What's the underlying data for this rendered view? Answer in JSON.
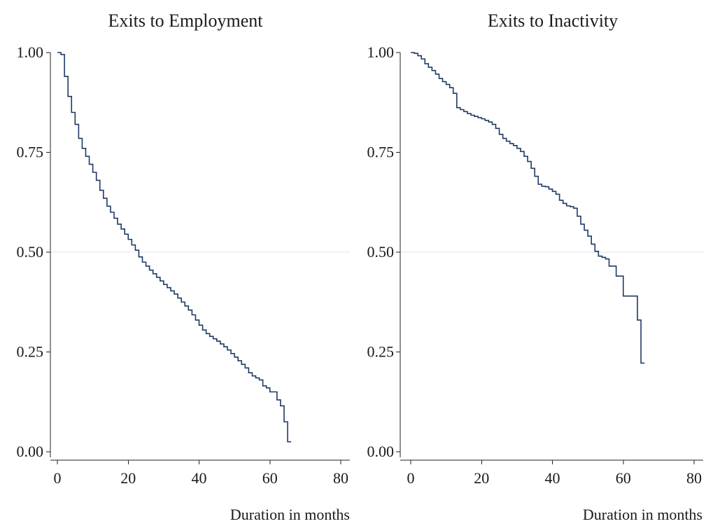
{
  "colors": {
    "series": "#1f3a66",
    "reference_line": "#dde3f2",
    "axis": "#222222"
  },
  "chart_data": [
    {
      "type": "line",
      "step": true,
      "title": "Exits to Employment",
      "xlabel": "Duration in months",
      "ylabel": "",
      "xlim": [
        0,
        80
      ],
      "ylim": [
        0,
        1
      ],
      "xticks": [
        0,
        20,
        40,
        60,
        80
      ],
      "xtick_labels": [
        "0",
        "20",
        "40",
        "60",
        "80"
      ],
      "yticks": [
        0,
        0.25,
        0.5,
        0.75,
        1
      ],
      "ytick_labels": [
        "0.00",
        "0.25",
        "0.50",
        "0.75",
        "1.00"
      ],
      "reference_y": 0.5,
      "grid": false,
      "series": [
        {
          "x": [
            0,
            1,
            2,
            3,
            4,
            5,
            6,
            7,
            8,
            9,
            10,
            11,
            12,
            13,
            14,
            15,
            16,
            17,
            18,
            19,
            20,
            21,
            22,
            23,
            24,
            25,
            26,
            27,
            28,
            29,
            30,
            31,
            32,
            33,
            34,
            35,
            36,
            37,
            38,
            39,
            40,
            41,
            42,
            43,
            44,
            45,
            46,
            47,
            48,
            49,
            50,
            51,
            52,
            53,
            54,
            55,
            56,
            57,
            58,
            59,
            60,
            61,
            62,
            63,
            64,
            65,
            66
          ],
          "y": [
            1.0,
            0.995,
            0.94,
            0.89,
            0.85,
            0.82,
            0.785,
            0.76,
            0.74,
            0.72,
            0.7,
            0.68,
            0.655,
            0.635,
            0.615,
            0.6,
            0.585,
            0.57,
            0.558,
            0.545,
            0.532,
            0.518,
            0.505,
            0.488,
            0.475,
            0.465,
            0.455,
            0.446,
            0.437,
            0.428,
            0.419,
            0.411,
            0.403,
            0.395,
            0.385,
            0.375,
            0.365,
            0.355,
            0.343,
            0.33,
            0.317,
            0.305,
            0.296,
            0.289,
            0.283,
            0.277,
            0.27,
            0.263,
            0.255,
            0.246,
            0.237,
            0.228,
            0.219,
            0.21,
            0.198,
            0.19,
            0.185,
            0.18,
            0.165,
            0.16,
            0.15,
            0.15,
            0.13,
            0.115,
            0.075,
            0.025,
            0.025
          ]
        }
      ]
    },
    {
      "type": "line",
      "step": true,
      "title": "Exits to Inactivity",
      "xlabel": "Duration in months",
      "ylabel": "",
      "xlim": [
        0,
        80
      ],
      "ylim": [
        0,
        1
      ],
      "xticks": [
        0,
        20,
        40,
        60,
        80
      ],
      "xtick_labels": [
        "0",
        "20",
        "40",
        "60",
        "80"
      ],
      "yticks": [
        0,
        0.25,
        0.5,
        0.75,
        1
      ],
      "ytick_labels": [
        "0.00",
        "0.25",
        "0.50",
        "0.75",
        "1.00"
      ],
      "reference_y": 0.5,
      "grid": false,
      "series": [
        {
          "x": [
            0,
            1,
            2,
            3,
            4,
            5,
            6,
            7,
            8,
            9,
            10,
            11,
            12,
            13,
            14,
            15,
            16,
            17,
            18,
            19,
            20,
            21,
            22,
            23,
            24,
            25,
            26,
            27,
            28,
            29,
            30,
            31,
            32,
            33,
            34,
            35,
            36,
            37,
            38,
            39,
            40,
            41,
            42,
            43,
            44,
            45,
            46,
            47,
            48,
            49,
            50,
            51,
            52,
            53,
            54,
            55,
            56,
            57,
            58,
            59,
            60,
            61,
            62,
            63,
            64,
            65,
            66
          ],
          "y": [
            1.0,
            0.998,
            0.992,
            0.984,
            0.972,
            0.963,
            0.955,
            0.946,
            0.935,
            0.927,
            0.92,
            0.912,
            0.898,
            0.862,
            0.857,
            0.852,
            0.847,
            0.843,
            0.84,
            0.837,
            0.834,
            0.83,
            0.826,
            0.82,
            0.81,
            0.795,
            0.785,
            0.778,
            0.772,
            0.767,
            0.76,
            0.752,
            0.74,
            0.727,
            0.71,
            0.69,
            0.67,
            0.665,
            0.664,
            0.658,
            0.652,
            0.645,
            0.63,
            0.622,
            0.616,
            0.614,
            0.61,
            0.59,
            0.57,
            0.555,
            0.54,
            0.52,
            0.502,
            0.49,
            0.487,
            0.483,
            0.465,
            0.465,
            0.44,
            0.44,
            0.39,
            0.39,
            0.39,
            0.39,
            0.33,
            0.222,
            0.222
          ]
        }
      ]
    }
  ]
}
